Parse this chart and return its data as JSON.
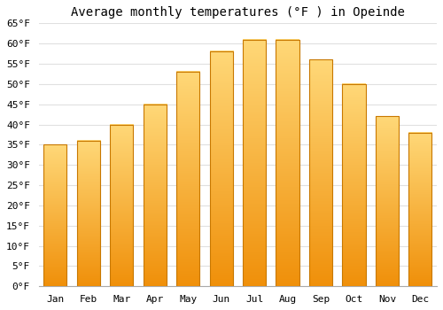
{
  "title": "Average monthly temperatures (°F ) in Opeinde",
  "months": [
    "Jan",
    "Feb",
    "Mar",
    "Apr",
    "May",
    "Jun",
    "Jul",
    "Aug",
    "Sep",
    "Oct",
    "Nov",
    "Dec"
  ],
  "values": [
    35,
    36,
    40,
    45,
    53,
    58,
    61,
    61,
    56,
    50,
    42,
    38
  ],
  "bar_color_top": "#FFD060",
  "bar_color_bottom": "#F0900A",
  "bar_color_mid": "#FFB020",
  "bar_edge_color": "#C87800",
  "ylim": [
    0,
    65
  ],
  "yticks": [
    0,
    5,
    10,
    15,
    20,
    25,
    30,
    35,
    40,
    45,
    50,
    55,
    60,
    65
  ],
  "ytick_labels": [
    "0°F",
    "5°F",
    "10°F",
    "15°F",
    "20°F",
    "25°F",
    "30°F",
    "35°F",
    "40°F",
    "45°F",
    "50°F",
    "55°F",
    "60°F",
    "65°F"
  ],
  "background_color": "#FFFFFF",
  "grid_color": "#E0E0E0",
  "title_fontsize": 10,
  "tick_fontsize": 8,
  "bar_width": 0.7
}
